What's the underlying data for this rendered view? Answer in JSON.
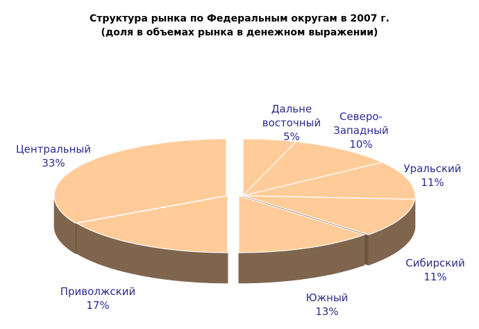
{
  "chart_data": {
    "type": "pie",
    "title": "Структура рынка по Федеральным округам в 2007 г.",
    "subtitle": "(доля в объемах рынка в денежном выражении)",
    "slices": [
      {
        "label_lines": [
          "Дальне",
          "восточный"
        ],
        "value": 5,
        "value_label": "5%"
      },
      {
        "label_lines": [
          "Северо-",
          "Западный"
        ],
        "value": 10,
        "value_label": "10%"
      },
      {
        "label_lines": [
          "Уральский"
        ],
        "value": 11,
        "value_label": "11%"
      },
      {
        "label_lines": [
          "Сибирский"
        ],
        "value": 11,
        "value_label": "11%"
      },
      {
        "label_lines": [
          "Южный"
        ],
        "value": 13,
        "value_label": "13%"
      },
      {
        "label_lines": [
          "Приволжский"
        ],
        "value": 17,
        "value_label": "17%"
      },
      {
        "label_lines": [
          "Центральный"
        ],
        "value": 33,
        "value_label": "33%"
      }
    ],
    "colors": {
      "top": "#FFCC99",
      "side": "#7F654E",
      "side_dark": "#6B5442",
      "label": "#2B2B8F"
    },
    "style": "3d-exploded"
  }
}
